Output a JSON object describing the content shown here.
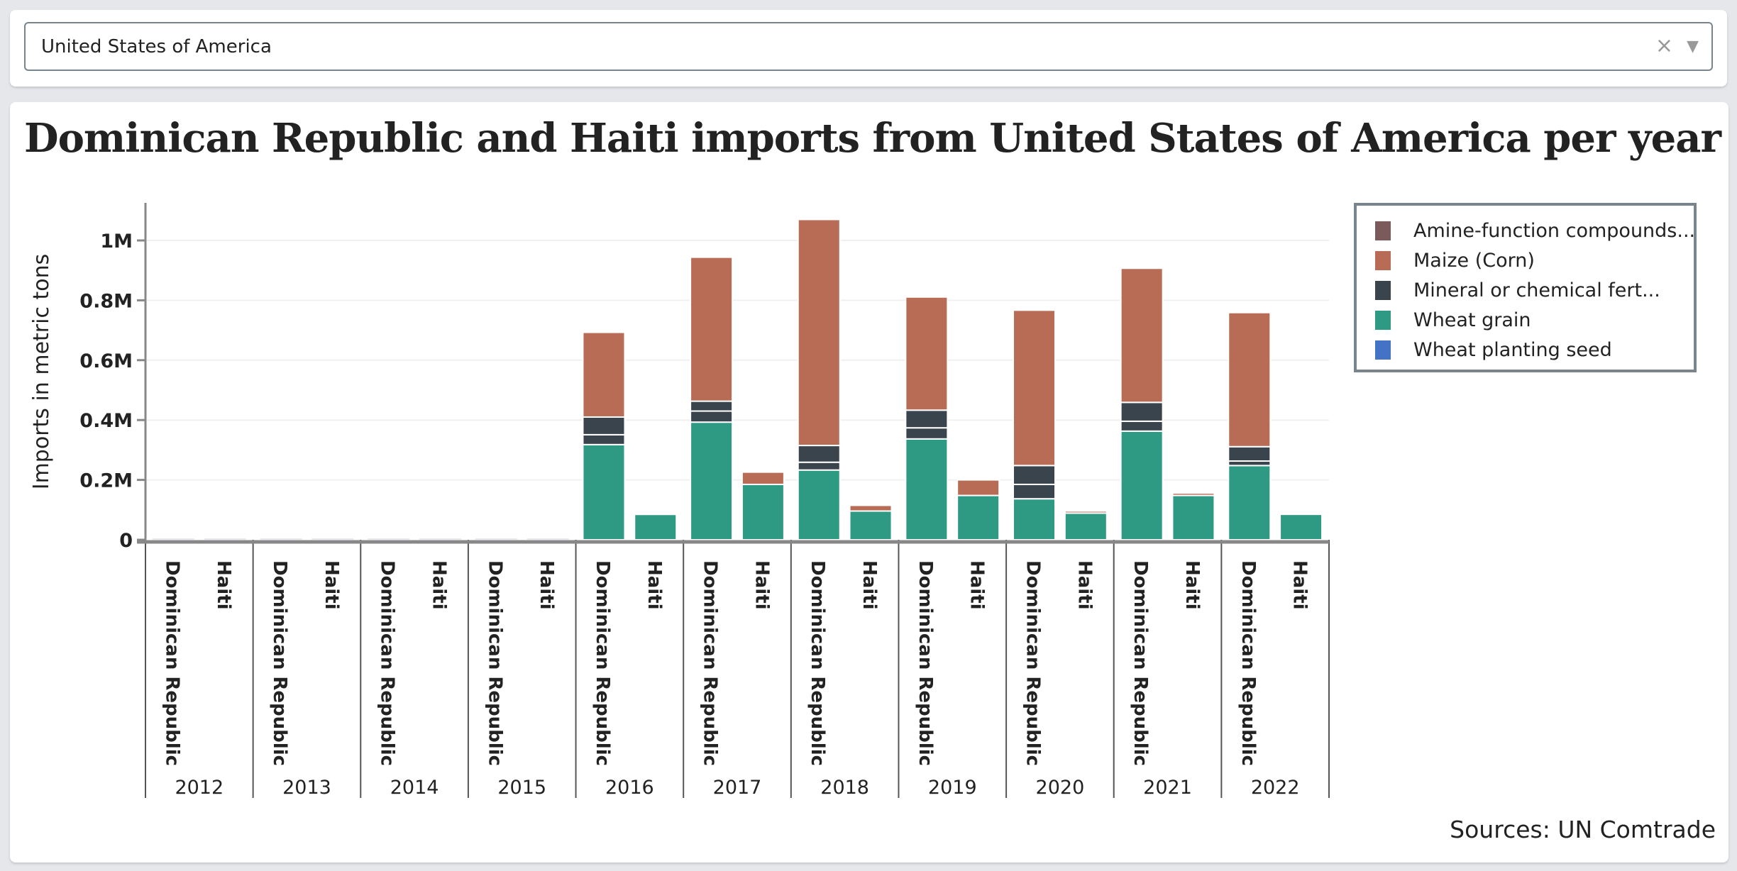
{
  "selector": {
    "value": "United States of America",
    "clear_icon": "close-icon",
    "dropdown_icon": "chevron-down-icon"
  },
  "chart": {
    "title": "Dominican Republic and Haiti imports from United States of America per year",
    "sources": "Sources: UN Comtrade"
  },
  "chart_data": {
    "type": "bar",
    "stacked": true,
    "title": "Dominican Republic and Haiti imports from United States of America per year",
    "ylabel": "Imports in metric tons",
    "xlabel": "",
    "ylim": [
      0,
      1120000
    ],
    "yticks": [
      {
        "v": 0,
        "label": "0"
      },
      {
        "v": 200000,
        "label": "0.2M"
      },
      {
        "v": 400000,
        "label": "0.4M"
      },
      {
        "v": 600000,
        "label": "0.6M"
      },
      {
        "v": 800000,
        "label": "0.8M"
      },
      {
        "v": 1000000,
        "label": "1M"
      }
    ],
    "grid": true,
    "legend_position": "right",
    "legend": [
      {
        "name": "Amine-function compounds...",
        "color": "#7a5a5a"
      },
      {
        "name": "Maize (Corn)",
        "color": "#b86b55"
      },
      {
        "name": "Mineral or chemical fert...",
        "color": "#39444c"
      },
      {
        "name": "Wheat grain",
        "color": "#2f9a84"
      },
      {
        "name": "Wheat planting seed",
        "color": "#4472c4"
      }
    ],
    "subcategories": [
      "Dominican Republic",
      "Haiti"
    ],
    "categories": [
      "2012",
      "2013",
      "2014",
      "2015",
      "2016",
      "2017",
      "2018",
      "2019",
      "2020",
      "2021",
      "2022"
    ],
    "bars": [
      {
        "year": "2012",
        "country": "Dominican Republic",
        "segments": []
      },
      {
        "year": "2012",
        "country": "Haiti",
        "segments": []
      },
      {
        "year": "2013",
        "country": "Dominican Republic",
        "segments": []
      },
      {
        "year": "2013",
        "country": "Haiti",
        "segments": []
      },
      {
        "year": "2014",
        "country": "Dominican Republic",
        "segments": []
      },
      {
        "year": "2014",
        "country": "Haiti",
        "segments": []
      },
      {
        "year": "2015",
        "country": "Dominican Republic",
        "segments": []
      },
      {
        "year": "2015",
        "country": "Haiti",
        "segments": []
      },
      {
        "year": "2016",
        "country": "Dominican Republic",
        "segments": [
          {
            "product": "Wheat grain",
            "value": 318000
          },
          {
            "product": "Mineral or chemical fert...",
            "value": 33000
          },
          {
            "product": "Mineral or chemical fert...",
            "value": 59000
          },
          {
            "product": "Maize (Corn)",
            "value": 283000
          }
        ]
      },
      {
        "year": "2016",
        "country": "Haiti",
        "segments": [
          {
            "product": "Wheat grain",
            "value": 85000
          },
          {
            "product": "Maize (Corn)",
            "value": 4000
          }
        ]
      },
      {
        "year": "2017",
        "country": "Dominican Republic",
        "segments": [
          {
            "product": "Wheat grain",
            "value": 393000
          },
          {
            "product": "Mineral or chemical fert...",
            "value": 37000
          },
          {
            "product": "Mineral or chemical fert...",
            "value": 33000
          },
          {
            "product": "Maize (Corn)",
            "value": 481000
          }
        ]
      },
      {
        "year": "2017",
        "country": "Haiti",
        "segments": [
          {
            "product": "Wheat grain",
            "value": 185000
          },
          {
            "product": "Maize (Corn)",
            "value": 41000
          }
        ]
      },
      {
        "year": "2018",
        "country": "Dominican Republic",
        "segments": [
          {
            "product": "Wheat grain",
            "value": 233000
          },
          {
            "product": "Mineral or chemical fert...",
            "value": 26000
          },
          {
            "product": "Mineral or chemical fert...",
            "value": 56000
          },
          {
            "product": "Maize (Corn)",
            "value": 755000
          }
        ]
      },
      {
        "year": "2018",
        "country": "Haiti",
        "segments": [
          {
            "product": "Wheat grain",
            "value": 96000
          },
          {
            "product": "Maize (Corn)",
            "value": 19000
          }
        ]
      },
      {
        "year": "2019",
        "country": "Dominican Republic",
        "segments": [
          {
            "product": "Wheat grain",
            "value": 337000
          },
          {
            "product": "Mineral or chemical fert...",
            "value": 37000
          },
          {
            "product": "Mineral or chemical fert...",
            "value": 59000
          },
          {
            "product": "Maize (Corn)",
            "value": 378000
          }
        ]
      },
      {
        "year": "2019",
        "country": "Haiti",
        "segments": [
          {
            "product": "Wheat grain",
            "value": 148000
          },
          {
            "product": "Maize (Corn)",
            "value": 52000
          }
        ]
      },
      {
        "year": "2020",
        "country": "Dominican Republic",
        "segments": [
          {
            "product": "Wheat grain",
            "value": 137000
          },
          {
            "product": "Mineral or chemical fert...",
            "value": 48000
          },
          {
            "product": "Mineral or chemical fert...",
            "value": 63000
          },
          {
            "product": "Maize (Corn)",
            "value": 519000
          }
        ]
      },
      {
        "year": "2020",
        "country": "Haiti",
        "segments": [
          {
            "product": "Wheat grain",
            "value": 89000
          },
          {
            "product": "Maize (Corn)",
            "value": 7000
          }
        ]
      },
      {
        "year": "2021",
        "country": "Dominican Republic",
        "segments": [
          {
            "product": "Wheat grain",
            "value": 363000
          },
          {
            "product": "Mineral or chemical fert...",
            "value": 33000
          },
          {
            "product": "Mineral or chemical fert...",
            "value": 63000
          },
          {
            "product": "Maize (Corn)",
            "value": 448000
          }
        ]
      },
      {
        "year": "2021",
        "country": "Haiti",
        "segments": [
          {
            "product": "Wheat grain",
            "value": 148000
          },
          {
            "product": "Maize (Corn)",
            "value": 8000
          }
        ]
      },
      {
        "year": "2022",
        "country": "Dominican Republic",
        "segments": [
          {
            "product": "Wheat grain",
            "value": 248000
          },
          {
            "product": "Mineral or chemical fert...",
            "value": 15000
          },
          {
            "product": "Mineral or chemical fert...",
            "value": 48000
          },
          {
            "product": "Maize (Corn)",
            "value": 448000
          }
        ]
      },
      {
        "year": "2022",
        "country": "Haiti",
        "segments": [
          {
            "product": "Wheat grain",
            "value": 85000
          }
        ]
      }
    ]
  }
}
